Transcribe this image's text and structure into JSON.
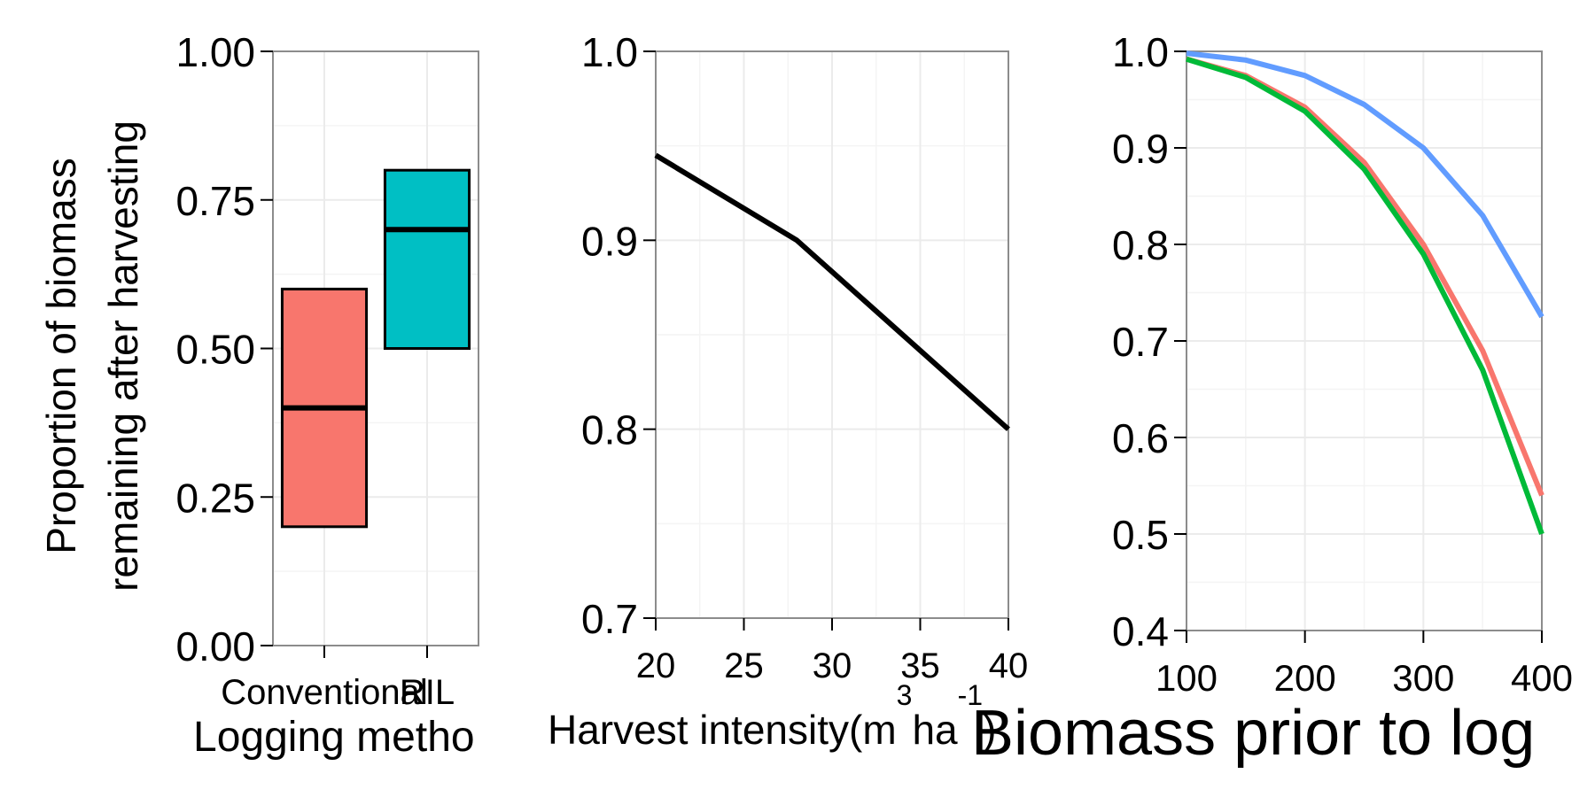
{
  "chart_data": [
    {
      "type": "bar",
      "xlabel": "Logging metho",
      "ylabel_lines": [
        "Proportion of biomass",
        "remaining after harvesting"
      ],
      "categories": [
        "Conventional",
        "RIL"
      ],
      "series": [
        {
          "values": [
            0.2,
            0.5
          ],
          "lower": [
            0.2,
            0.5
          ],
          "middle": [
            0.4,
            0.7
          ],
          "upper": [
            0.6,
            0.8
          ]
        }
      ],
      "ylim": [
        0,
        1
      ],
      "yticks": [
        0,
        0.25,
        0.5,
        0.75,
        1
      ],
      "ytick_labels": [
        "0.00",
        "0.25",
        "0.50",
        "0.75",
        "1.00"
      ],
      "grid": true,
      "colors": [
        "#F8766D",
        "#00BFC4"
      ]
    },
    {
      "type": "line",
      "xlabel": "Harvest intensity(m",
      "xlabel_sup": "3",
      "xlabel_tail": "ha",
      "xlabel_tail_sup": "-1",
      "xlabel_close": ")",
      "ylabel": "",
      "series": [
        {
          "x": [
            20,
            28,
            40
          ],
          "y": [
            0.945,
            0.9,
            0.8
          ],
          "color": "#000000"
        }
      ],
      "xlim": [
        20,
        40
      ],
      "ylim": [
        0.7,
        1.0
      ],
      "xticks": [
        20,
        25,
        30,
        35,
        40
      ],
      "yticks": [
        0.7,
        0.8,
        0.9,
        1.0
      ],
      "ytick_labels": [
        "0.7",
        "0.8",
        "0.9",
        "1.0"
      ],
      "grid": true
    },
    {
      "type": "line",
      "xlabel": "Biomass prior to log",
      "ylabel": "",
      "series": [
        {
          "x": [
            100,
            150,
            200,
            250,
            300,
            350,
            400
          ],
          "y": [
            0.992,
            0.975,
            0.942,
            0.885,
            0.8,
            0.69,
            0.54
          ],
          "color": "#F8766D"
        },
        {
          "x": [
            100,
            150,
            200,
            250,
            300,
            350,
            400
          ],
          "y": [
            0.992,
            0.973,
            0.938,
            0.878,
            0.79,
            0.67,
            0.5
          ],
          "color": "#00BA38"
        },
        {
          "x": [
            100,
            150,
            200,
            250,
            300,
            350,
            400
          ],
          "y": [
            0.998,
            0.991,
            0.975,
            0.945,
            0.9,
            0.83,
            0.725
          ],
          "color": "#619CFF"
        }
      ],
      "xlim": [
        100,
        400
      ],
      "ylim": [
        0.4,
        1.0
      ],
      "xticks": [
        100,
        200,
        300,
        400
      ],
      "yticks": [
        0.4,
        0.5,
        0.6,
        0.7,
        0.8,
        0.9,
        1.0
      ],
      "ytick_labels": [
        "0.4",
        "0.5",
        "0.6",
        "0.7",
        "0.8",
        "0.9",
        "1.0"
      ],
      "grid": true
    }
  ]
}
